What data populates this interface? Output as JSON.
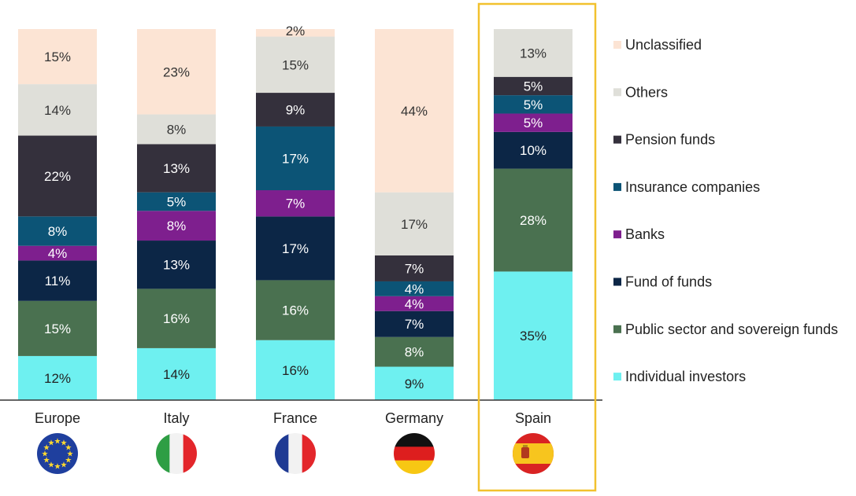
{
  "chart_data": {
    "type": "bar",
    "stacked": true,
    "percent": true,
    "title": "",
    "xlabel": "",
    "ylabel": "",
    "categories": [
      "Europe",
      "Italy",
      "France",
      "Germany",
      "Spain"
    ],
    "highlighted_category": "Spain",
    "series": [
      {
        "name": "Individual investors",
        "color": "#6EF0F0",
        "label_color": "#222222",
        "values": [
          12,
          14,
          16,
          9,
          35
        ]
      },
      {
        "name": "Public sector and sovereign funds",
        "color": "#4A7150",
        "label_color": "#ffffff",
        "values": [
          15,
          16,
          16,
          8,
          28
        ]
      },
      {
        "name": "Fund of funds",
        "color": "#0C2646",
        "label_color": "#ffffff",
        "values": [
          11,
          13,
          17,
          7,
          10
        ]
      },
      {
        "name": "Banks",
        "color": "#7E1F8E",
        "label_color": "#ffffff",
        "values": [
          4,
          8,
          7,
          4,
          5
        ]
      },
      {
        "name": "Insurance companies",
        "color": "#0C5476",
        "label_color": "#ffffff",
        "values": [
          8,
          5,
          17,
          4,
          5
        ]
      },
      {
        "name": "Pension funds",
        "color": "#34303C",
        "label_color": "#ffffff",
        "values": [
          22,
          13,
          9,
          7,
          5
        ]
      },
      {
        "name": "Others",
        "color": "#DFDFD9",
        "label_color": "#333333",
        "values": [
          14,
          8,
          15,
          17,
          13
        ]
      },
      {
        "name": "Unclassified",
        "color": "#FCE4D4",
        "label_color": "#333333",
        "values": [
          15,
          23,
          2,
          44,
          0
        ]
      }
    ],
    "legend_order": [
      "Unclassified",
      "Others",
      "Pension funds",
      "Insurance companies",
      "Banks",
      "Fund of funds",
      "Public sector and sovereign funds",
      "Individual investors"
    ],
    "legend_position": "right",
    "flags": [
      {
        "country": "Europe",
        "icon": "eu-flag-icon"
      },
      {
        "country": "Italy",
        "icon": "italy-flag-icon"
      },
      {
        "country": "France",
        "icon": "france-flag-icon"
      },
      {
        "country": "Germany",
        "icon": "germany-flag-icon"
      },
      {
        "country": "Spain",
        "icon": "spain-flag-icon"
      }
    ],
    "highlight_color": "#F2C12E",
    "grid": false
  }
}
